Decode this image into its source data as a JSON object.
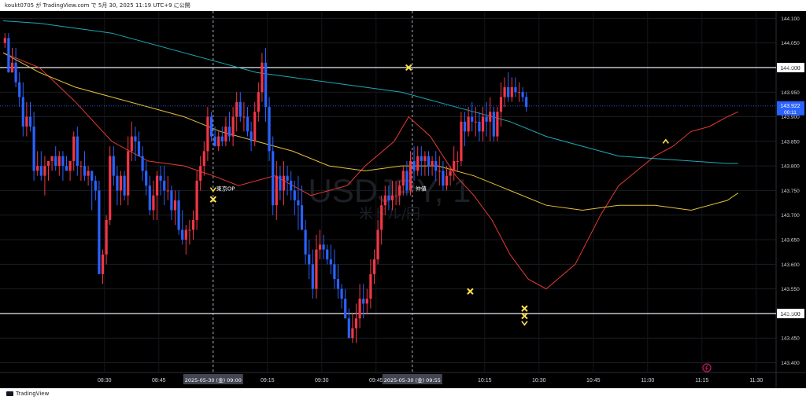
{
  "header": {
    "caption": "koukt0705 が TradingView.com で 5月 30, 2025 11:19 UTC+9 に公開"
  },
  "footer": {
    "brand": "TradingView"
  },
  "watermark": {
    "symbol": "USDJPY, 1",
    "subtitle": "米ドル/円"
  },
  "colors": {
    "background": "#000000",
    "bull": "#f23645",
    "bear": "#2962ff",
    "ma_fast": "#e53935",
    "ma_mid": "#e6c13a",
    "ma_slow": "#1fa9b7",
    "marker": "#ffe14a",
    "price_badge": "#2962ff"
  },
  "chart_data": {
    "type": "candlestick",
    "symbol": "USDJPY",
    "interval": "1",
    "ylim": [
      143.38,
      144.115
    ],
    "y_ticks": [
      "143.400",
      "143.450",
      "143.500",
      "143.550",
      "143.600",
      "143.650",
      "143.700",
      "143.750",
      "143.800",
      "143.850",
      "143.900",
      "143.950",
      "144.000",
      "144.050",
      "144.100"
    ],
    "x_ticks": [
      "08:30",
      "08:45",
      "09:15",
      "09:30",
      "09:45",
      "10:15",
      "10:30",
      "10:45",
      "11:00",
      "11:15",
      "11:30"
    ],
    "x_tick_minutes": [
      28,
      43,
      73,
      88,
      103,
      133,
      148,
      163,
      178,
      193,
      208
    ],
    "x_range_minutes": [
      0,
      214
    ],
    "time_highlights": [
      {
        "label": "2025-05-30 (金)  09:00",
        "minute": 58
      },
      {
        "label": "2025-05-30 (金)  09:55",
        "minute": 113
      }
    ],
    "horizontal_levels": [
      144.0,
      143.5
    ],
    "last_price": "143.922",
    "countdown": "00:11",
    "annotations": [
      {
        "text": "東京OP",
        "minute": 58,
        "price": 143.755
      },
      {
        "text": "仲値",
        "minute": 113,
        "price": 143.755
      }
    ],
    "markers": [
      {
        "type": "arrow-down",
        "minute": 58,
        "price": 143.752
      },
      {
        "type": "cross",
        "minute": 58,
        "price": 143.732
      },
      {
        "type": "cross",
        "minute": 112,
        "price": 144.0
      },
      {
        "type": "cross",
        "minute": 129,
        "price": 143.545
      },
      {
        "type": "cross",
        "minute": 144,
        "price": 143.51
      },
      {
        "type": "cross",
        "minute": 144,
        "price": 143.495
      },
      {
        "type": "arrow-down",
        "minute": 144,
        "price": 143.48
      },
      {
        "type": "arrow-up",
        "minute": 183,
        "price": 143.85
      }
    ],
    "candles_open": [
      144.05,
      144.06,
      143.99,
      144.01,
      143.97,
      143.94,
      143.88,
      143.9,
      143.88,
      143.79,
      143.8,
      143.78,
      143.8,
      143.81,
      143.82,
      143.8,
      143.82,
      143.8,
      143.79,
      143.81,
      143.86,
      143.8,
      143.8,
      143.78,
      143.79,
      143.77,
      143.75,
      143.58,
      143.62,
      143.69,
      143.82,
      143.78,
      143.75,
      143.78,
      143.74,
      143.83,
      143.86,
      143.85,
      143.82,
      143.79,
      143.76,
      143.71,
      143.74,
      143.78,
      143.77,
      143.75,
      143.75,
      143.71,
      143.73,
      143.67,
      143.65,
      143.67,
      143.67,
      143.69,
      143.77,
      143.8,
      143.83,
      143.9,
      143.86,
      143.84,
      143.86,
      143.85,
      143.88,
      143.86,
      143.9,
      143.93,
      143.9,
      143.9,
      143.87,
      143.85,
      143.91,
      143.95,
      144.01,
      143.92,
      143.83,
      143.72,
      143.78,
      143.75,
      143.78,
      143.77,
      143.75,
      143.73,
      143.72,
      143.67,
      143.62,
      143.6,
      143.55,
      143.63,
      143.64,
      143.63,
      143.61,
      143.6,
      143.57,
      143.55,
      143.53,
      143.49,
      143.45,
      143.47,
      143.49,
      143.53,
      143.52,
      143.53,
      143.58,
      143.61,
      143.67,
      143.72,
      143.74,
      143.73,
      143.74,
      143.74,
      143.76,
      143.79,
      143.75,
      143.81,
      143.79,
      143.82,
      143.81,
      143.82,
      143.8,
      143.81,
      143.79,
      143.79,
      143.76,
      143.78,
      143.79,
      143.81,
      143.81,
      143.89,
      143.87,
      143.9,
      143.89,
      143.89,
      143.87,
      143.9,
      143.89,
      143.91,
      143.86,
      143.91,
      143.94,
      143.96,
      143.94,
      143.96,
      143.95,
      143.95,
      143.94
    ],
    "candles_high": [
      144.07,
      144.07,
      144.04,
      144.04,
      143.99,
      143.97,
      143.93,
      143.93,
      143.91,
      143.83,
      143.83,
      143.82,
      143.81,
      143.82,
      143.84,
      143.83,
      143.83,
      143.82,
      143.81,
      143.87,
      143.88,
      143.81,
      143.83,
      143.8,
      143.79,
      143.78,
      143.77,
      143.63,
      143.7,
      143.84,
      143.84,
      143.8,
      143.79,
      143.79,
      143.86,
      143.89,
      143.88,
      143.87,
      143.84,
      143.81,
      143.78,
      143.77,
      143.79,
      143.8,
      143.8,
      143.78,
      143.76,
      143.75,
      143.75,
      143.71,
      143.68,
      143.69,
      143.71,
      143.79,
      143.82,
      143.85,
      143.92,
      143.91,
      143.88,
      143.87,
      143.88,
      143.9,
      143.91,
      143.92,
      143.95,
      143.95,
      143.93,
      143.92,
      143.89,
      143.93,
      143.97,
      144.03,
      144.04,
      143.94,
      143.86,
      143.81,
      143.8,
      143.81,
      143.8,
      143.79,
      143.77,
      143.78,
      143.76,
      143.69,
      143.65,
      143.63,
      143.66,
      143.67,
      143.66,
      143.64,
      143.64,
      143.63,
      143.6,
      143.56,
      143.55,
      143.51,
      143.5,
      143.52,
      143.56,
      143.56,
      143.55,
      143.61,
      143.63,
      143.69,
      143.74,
      143.76,
      143.76,
      143.77,
      143.77,
      143.77,
      143.8,
      143.81,
      143.83,
      143.84,
      143.84,
      143.84,
      143.83,
      143.83,
      143.82,
      143.83,
      143.82,
      143.81,
      143.8,
      143.8,
      143.84,
      143.83,
      143.91,
      143.91,
      143.92,
      143.93,
      143.92,
      143.91,
      143.92,
      143.93,
      143.94,
      143.92,
      143.92,
      143.97,
      143.98,
      143.99,
      143.98,
      143.98,
      143.97,
      143.96,
      143.95
    ],
    "candles_low": [
      144.04,
      143.99,
      143.99,
      143.96,
      143.92,
      143.86,
      143.86,
      143.87,
      143.77,
      143.78,
      143.77,
      143.74,
      143.77,
      143.79,
      143.79,
      143.78,
      143.77,
      143.79,
      143.77,
      143.79,
      143.78,
      143.77,
      143.77,
      143.76,
      143.71,
      143.73,
      143.58,
      143.56,
      143.6,
      143.68,
      143.76,
      143.72,
      143.72,
      143.73,
      143.72,
      143.81,
      143.81,
      143.82,
      143.77,
      143.74,
      143.7,
      143.69,
      143.69,
      143.74,
      143.72,
      143.73,
      143.69,
      143.68,
      143.66,
      143.64,
      143.62,
      143.64,
      143.65,
      143.67,
      143.75,
      143.78,
      143.81,
      143.85,
      143.84,
      143.83,
      143.84,
      143.84,
      143.85,
      143.84,
      143.87,
      143.89,
      143.87,
      143.86,
      143.83,
      143.84,
      143.89,
      143.93,
      143.89,
      143.81,
      143.7,
      143.69,
      143.73,
      143.72,
      143.74,
      143.73,
      143.7,
      143.67,
      143.67,
      143.6,
      143.57,
      143.53,
      143.53,
      143.61,
      143.61,
      143.6,
      143.58,
      143.55,
      143.53,
      143.51,
      143.49,
      143.45,
      143.44,
      143.44,
      143.47,
      143.49,
      143.5,
      143.51,
      143.56,
      143.6,
      143.64,
      143.7,
      143.71,
      143.71,
      143.72,
      143.72,
      143.74,
      143.74,
      143.74,
      143.77,
      143.78,
      143.78,
      143.78,
      143.78,
      143.78,
      143.77,
      143.76,
      143.75,
      143.75,
      143.76,
      143.77,
      143.79,
      143.8,
      143.84,
      143.86,
      143.87,
      143.86,
      143.85,
      143.85,
      143.86,
      143.85,
      143.85,
      143.85,
      143.88,
      143.92,
      143.93,
      143.93,
      143.94,
      143.93,
      143.93,
      143.91
    ],
    "candles_close": [
      144.06,
      143.99,
      144.01,
      143.97,
      143.94,
      143.88,
      143.9,
      143.88,
      143.79,
      143.8,
      143.78,
      143.8,
      143.81,
      143.82,
      143.8,
      143.82,
      143.8,
      143.79,
      143.81,
      143.86,
      143.8,
      143.8,
      143.78,
      143.79,
      143.77,
      143.75,
      143.58,
      143.62,
      143.69,
      143.82,
      143.78,
      143.75,
      143.78,
      143.74,
      143.83,
      143.86,
      143.85,
      143.82,
      143.79,
      143.76,
      143.71,
      143.74,
      143.78,
      143.77,
      143.75,
      143.75,
      143.71,
      143.73,
      143.67,
      143.65,
      143.67,
      143.67,
      143.69,
      143.77,
      143.8,
      143.83,
      143.9,
      143.86,
      143.84,
      143.86,
      143.85,
      143.88,
      143.86,
      143.9,
      143.93,
      143.9,
      143.9,
      143.87,
      143.85,
      143.91,
      143.95,
      144.01,
      143.92,
      143.83,
      143.72,
      143.78,
      143.75,
      143.78,
      143.77,
      143.75,
      143.73,
      143.72,
      143.67,
      143.62,
      143.6,
      143.55,
      143.63,
      143.64,
      143.63,
      143.61,
      143.6,
      143.57,
      143.55,
      143.53,
      143.49,
      143.45,
      143.47,
      143.49,
      143.53,
      143.52,
      143.53,
      143.58,
      143.61,
      143.67,
      143.72,
      143.74,
      143.73,
      143.74,
      143.74,
      143.76,
      143.79,
      143.75,
      143.81,
      143.79,
      143.82,
      143.81,
      143.82,
      143.8,
      143.81,
      143.79,
      143.79,
      143.76,
      143.78,
      143.79,
      143.81,
      143.81,
      143.89,
      143.87,
      143.9,
      143.89,
      143.89,
      143.87,
      143.9,
      143.89,
      143.91,
      143.86,
      143.91,
      143.94,
      143.96,
      143.94,
      143.96,
      143.95,
      143.95,
      143.94,
      143.92
    ],
    "series": [
      {
        "kind": "moving-average",
        "role": "fast",
        "color": "#e53935",
        "x": [
          0,
          10,
          20,
          30,
          40,
          50,
          58,
          65,
          75,
          85,
          95,
          100,
          108,
          112,
          118,
          125,
          130,
          135,
          140,
          145,
          150,
          158,
          165,
          170,
          175,
          180,
          185,
          190,
          195,
          200,
          203
        ],
        "y": [
          144.03,
          144.0,
          143.93,
          143.85,
          143.81,
          143.8,
          143.78,
          143.76,
          143.78,
          143.74,
          143.76,
          143.8,
          143.85,
          143.9,
          143.86,
          143.78,
          143.74,
          143.69,
          143.62,
          143.57,
          143.55,
          143.6,
          143.7,
          143.76,
          143.79,
          143.82,
          143.84,
          143.87,
          143.88,
          143.9,
          143.91
        ]
      },
      {
        "kind": "moving-average",
        "role": "medium",
        "color": "#e6c13a",
        "x": [
          0,
          10,
          20,
          30,
          40,
          50,
          60,
          70,
          80,
          90,
          100,
          110,
          120,
          130,
          140,
          150,
          160,
          170,
          180,
          190,
          200,
          203
        ],
        "y": [
          144.03,
          143.99,
          143.96,
          143.94,
          143.92,
          143.9,
          143.87,
          143.85,
          143.83,
          143.8,
          143.79,
          143.8,
          143.8,
          143.78,
          143.75,
          143.72,
          143.71,
          143.72,
          143.72,
          143.71,
          143.73,
          143.745
        ]
      },
      {
        "kind": "moving-average",
        "role": "slow",
        "color": "#1fa9b7",
        "x": [
          0,
          10,
          20,
          30,
          40,
          50,
          60,
          70,
          80,
          90,
          100,
          110,
          120,
          130,
          140,
          150,
          160,
          170,
          180,
          190,
          200,
          203
        ],
        "y": [
          144.095,
          144.09,
          144.08,
          144.07,
          144.05,
          144.03,
          144.01,
          143.99,
          143.98,
          143.97,
          143.96,
          143.95,
          143.93,
          143.91,
          143.89,
          143.86,
          143.84,
          143.82,
          143.815,
          143.81,
          143.805,
          143.805
        ]
      }
    ]
  }
}
